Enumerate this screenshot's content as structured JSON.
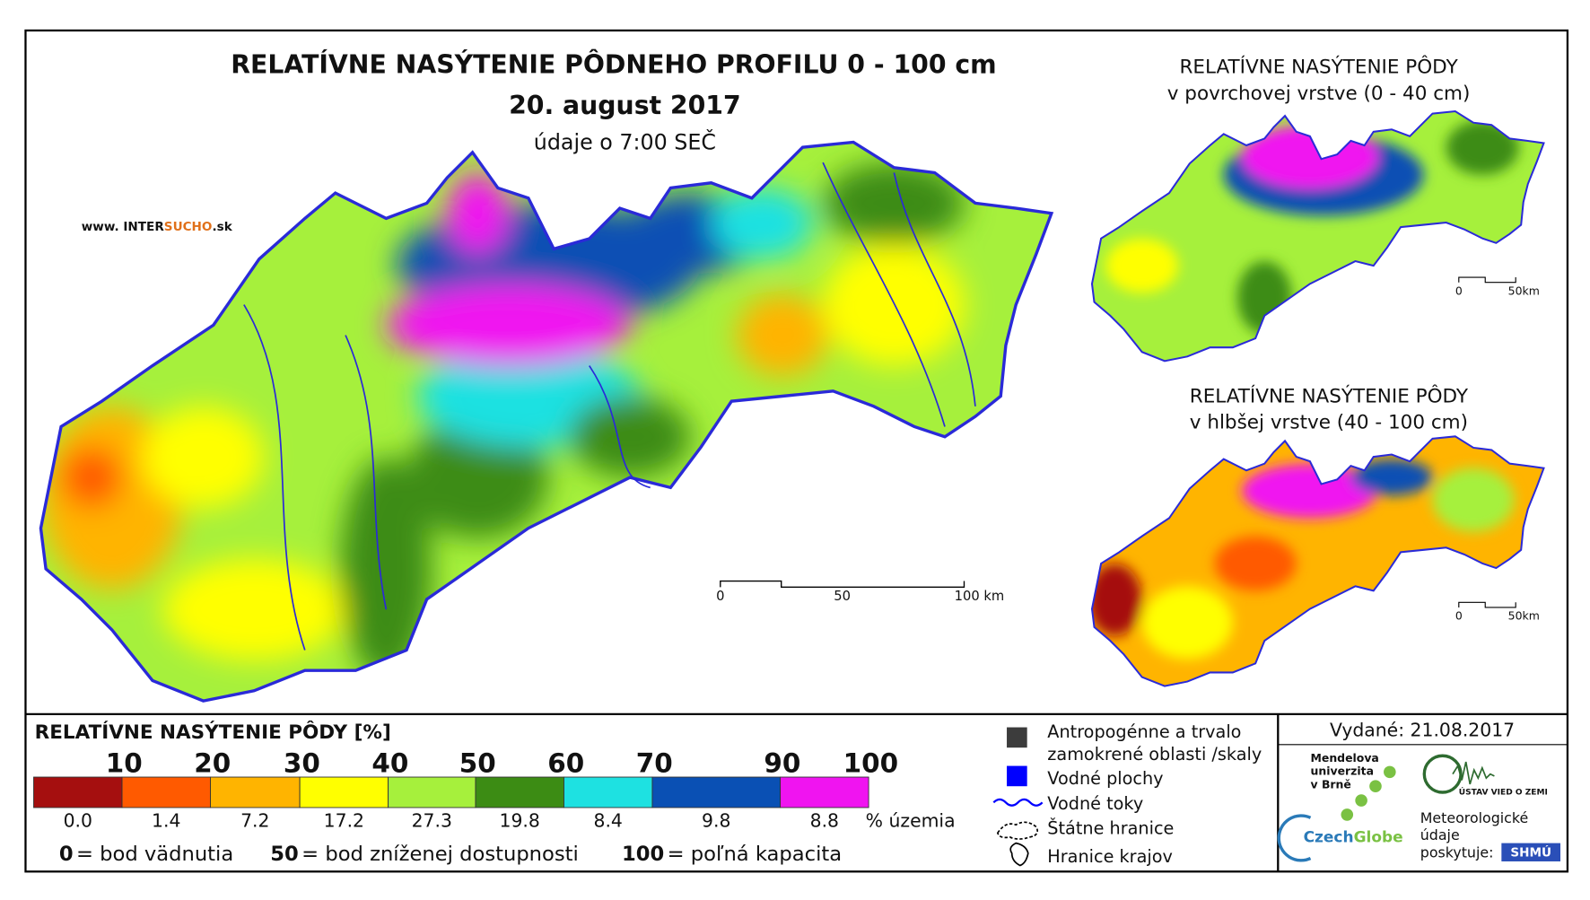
{
  "header": {
    "title": "RELATÍVNE NASÝTENIE PÔDNEHO PROFILU 0 - 100 cm",
    "date": "20. august 2017",
    "time": "údaje o 7:00 SEČ",
    "website": [
      "www. INTER",
      "SUCHO",
      ".sk"
    ]
  },
  "main_scale": {
    "labels": [
      "0",
      "50",
      "100 km"
    ]
  },
  "inset_top": {
    "title": [
      "RELATÍVNE NASÝTENIE PÔDY",
      "v povrchovej vrstve (0 - 40 cm)"
    ],
    "scale": [
      "0",
      "50km"
    ]
  },
  "inset_bottom": {
    "title": [
      "RELATÍVNE NASÝTENIE PÔDY",
      "v hlbšej vrstve (40 - 100 cm)"
    ],
    "scale": [
      "0",
      "50km"
    ]
  },
  "legend": {
    "title": "RELATÍVNE NASÝTENIE PÔDY [%]",
    "thresholds": [
      10,
      20,
      30,
      40,
      50,
      60,
      70,
      90,
      100
    ],
    "classes": [
      {
        "color": "#a50f0f",
        "share": "0.0"
      },
      {
        "color": "#ff5a00",
        "share": "1.4"
      },
      {
        "color": "#ffb400",
        "share": "7.2"
      },
      {
        "color": "#ffff00",
        "share": "17.2"
      },
      {
        "color": "#a6f03c",
        "share": "27.3"
      },
      {
        "color": "#3c8c14",
        "share": "19.8"
      },
      {
        "color": "#1ee1e1",
        "share": "8.4"
      },
      {
        "color": "#0a50b4",
        "share": "9.8"
      },
      {
        "color": "#f014f0",
        "share": "8.8"
      }
    ],
    "share_unit": "% územia",
    "notes": [
      {
        "key": "0",
        "text": "= bod vädnutia"
      },
      {
        "key": "50",
        "text": "= bod zníženej dostupnosti"
      },
      {
        "key": "100",
        "text": "= poľná kapacita"
      }
    ]
  },
  "symbols": [
    [
      "Antropogénne a trvalo",
      "zamokrené oblasti /skaly"
    ],
    [
      "Vodné plochy"
    ],
    [
      "Vodné toky"
    ],
    [
      "Štátne hranice"
    ],
    [
      "Hranice krajov"
    ]
  ],
  "issued": "Vydané: 21.08.2017",
  "logos": {
    "mendel": [
      "Mendelova",
      "univerzita",
      "v Brně"
    ],
    "czechglobe": [
      "Czech",
      "Globe"
    ],
    "ustav": "ÚSTAV VIED O ZEMI",
    "shmu_note": [
      "Meteorologické",
      "údaje",
      "poskytuje:"
    ],
    "shmu": "SHMÚ"
  }
}
